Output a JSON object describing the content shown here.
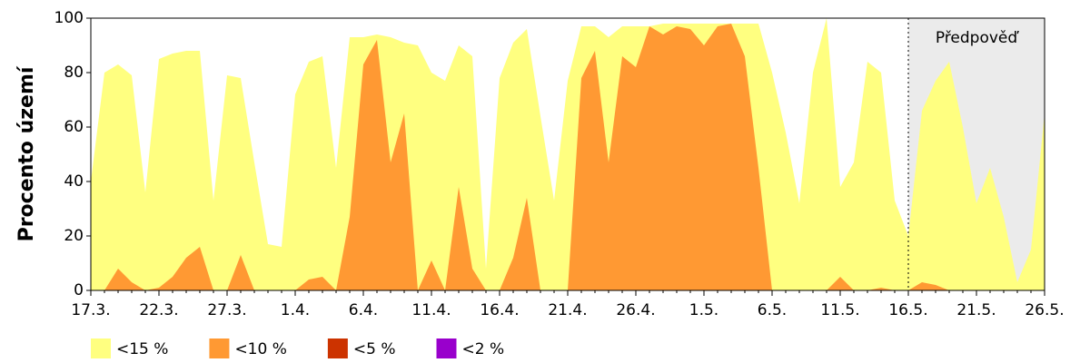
{
  "chart_data": {
    "type": "area",
    "y_label": "Procento území",
    "categories": [
      "17.3.",
      null,
      null,
      null,
      null,
      "22.3.",
      null,
      null,
      null,
      null,
      "27.3.",
      null,
      null,
      null,
      null,
      "1.4.",
      null,
      null,
      null,
      null,
      "6.4.",
      null,
      null,
      null,
      null,
      "11.4.",
      null,
      null,
      null,
      null,
      "16.4.",
      null,
      null,
      null,
      null,
      "21.4.",
      null,
      null,
      null,
      null,
      "26.4.",
      null,
      null,
      null,
      null,
      "1.5.",
      null,
      null,
      null,
      null,
      "6.5.",
      null,
      null,
      null,
      null,
      "11.5.",
      null,
      null,
      null,
      null,
      "16.5.",
      null,
      null,
      null,
      null,
      "21.5.",
      null,
      null,
      null,
      null,
      "26.5."
    ],
    "series": [
      {
        "name": "<15 %",
        "color": "#ffff80",
        "values": [
          40,
          80,
          83,
          79,
          36,
          85,
          87,
          88,
          88,
          33,
          79,
          78,
          47,
          17,
          16,
          72,
          84,
          86,
          45,
          93,
          93,
          94,
          93,
          91,
          90,
          80,
          77,
          90,
          86,
          8,
          78,
          91,
          96,
          64,
          33,
          77,
          97,
          97,
          93,
          97,
          97,
          97,
          98,
          98,
          98,
          98,
          98,
          98,
          98,
          98,
          80,
          58,
          32,
          80,
          100,
          38,
          47,
          84,
          80,
          33,
          20,
          66,
          77,
          84,
          60,
          32,
          45,
          27,
          3,
          15,
          65
        ]
      },
      {
        "name": "<10 %",
        "color": "#ff9933",
        "values": [
          0,
          0,
          8,
          3,
          0,
          1,
          5,
          12,
          16,
          0,
          0,
          13,
          0,
          0,
          0,
          0,
          4,
          5,
          0,
          27,
          83,
          92,
          47,
          65,
          0,
          11,
          0,
          38,
          8,
          0,
          0,
          12,
          34,
          0,
          0,
          0,
          78,
          88,
          47,
          86,
          82,
          97,
          94,
          97,
          96,
          90,
          97,
          98,
          86,
          45,
          0,
          0,
          0,
          0,
          0,
          5,
          0,
          0,
          1,
          0,
          0,
          3,
          2,
          0,
          0,
          0,
          0,
          0,
          0,
          0,
          0
        ]
      },
      {
        "name": "<5 %",
        "color": "#cc3300",
        "values": [
          0,
          0,
          0,
          0,
          0,
          0,
          0,
          0,
          0,
          0,
          0,
          0,
          0,
          0,
          0,
          0,
          0,
          0,
          0,
          0,
          0,
          0,
          0,
          0,
          0,
          0,
          0,
          0,
          0,
          0,
          0,
          0,
          0,
          0,
          0,
          0,
          0,
          0,
          0,
          0,
          0,
          0,
          0,
          0,
          0,
          0,
          0,
          0,
          0,
          0,
          0,
          0,
          0,
          0,
          0,
          0,
          0,
          0,
          0,
          0,
          0,
          0,
          0,
          0,
          0,
          0,
          0,
          0,
          0,
          0,
          0
        ]
      },
      {
        "name": "<2 %",
        "color": "#9900cc",
        "values": [
          0,
          0,
          0,
          0,
          0,
          0,
          0,
          0,
          0,
          0,
          0,
          0,
          0,
          0,
          0,
          0,
          0,
          0,
          0,
          0,
          0,
          0,
          0,
          0,
          0,
          0,
          0,
          0,
          0,
          0,
          0,
          0,
          0,
          0,
          0,
          0,
          0,
          0,
          0,
          0,
          0,
          0,
          0,
          0,
          0,
          0,
          0,
          0,
          0,
          0,
          0,
          0,
          0,
          0,
          0,
          0,
          0,
          0,
          0,
          0,
          0,
          0,
          0,
          0,
          0,
          0,
          0,
          0,
          0,
          0,
          0
        ]
      }
    ],
    "forecast": {
      "label": "Předpověď",
      "from": "16.5.",
      "color": "#ebebeb"
    },
    "ylim": [
      0,
      100
    ],
    "yticks": [
      0,
      20,
      40,
      60,
      80,
      100
    ],
    "grid": false
  }
}
